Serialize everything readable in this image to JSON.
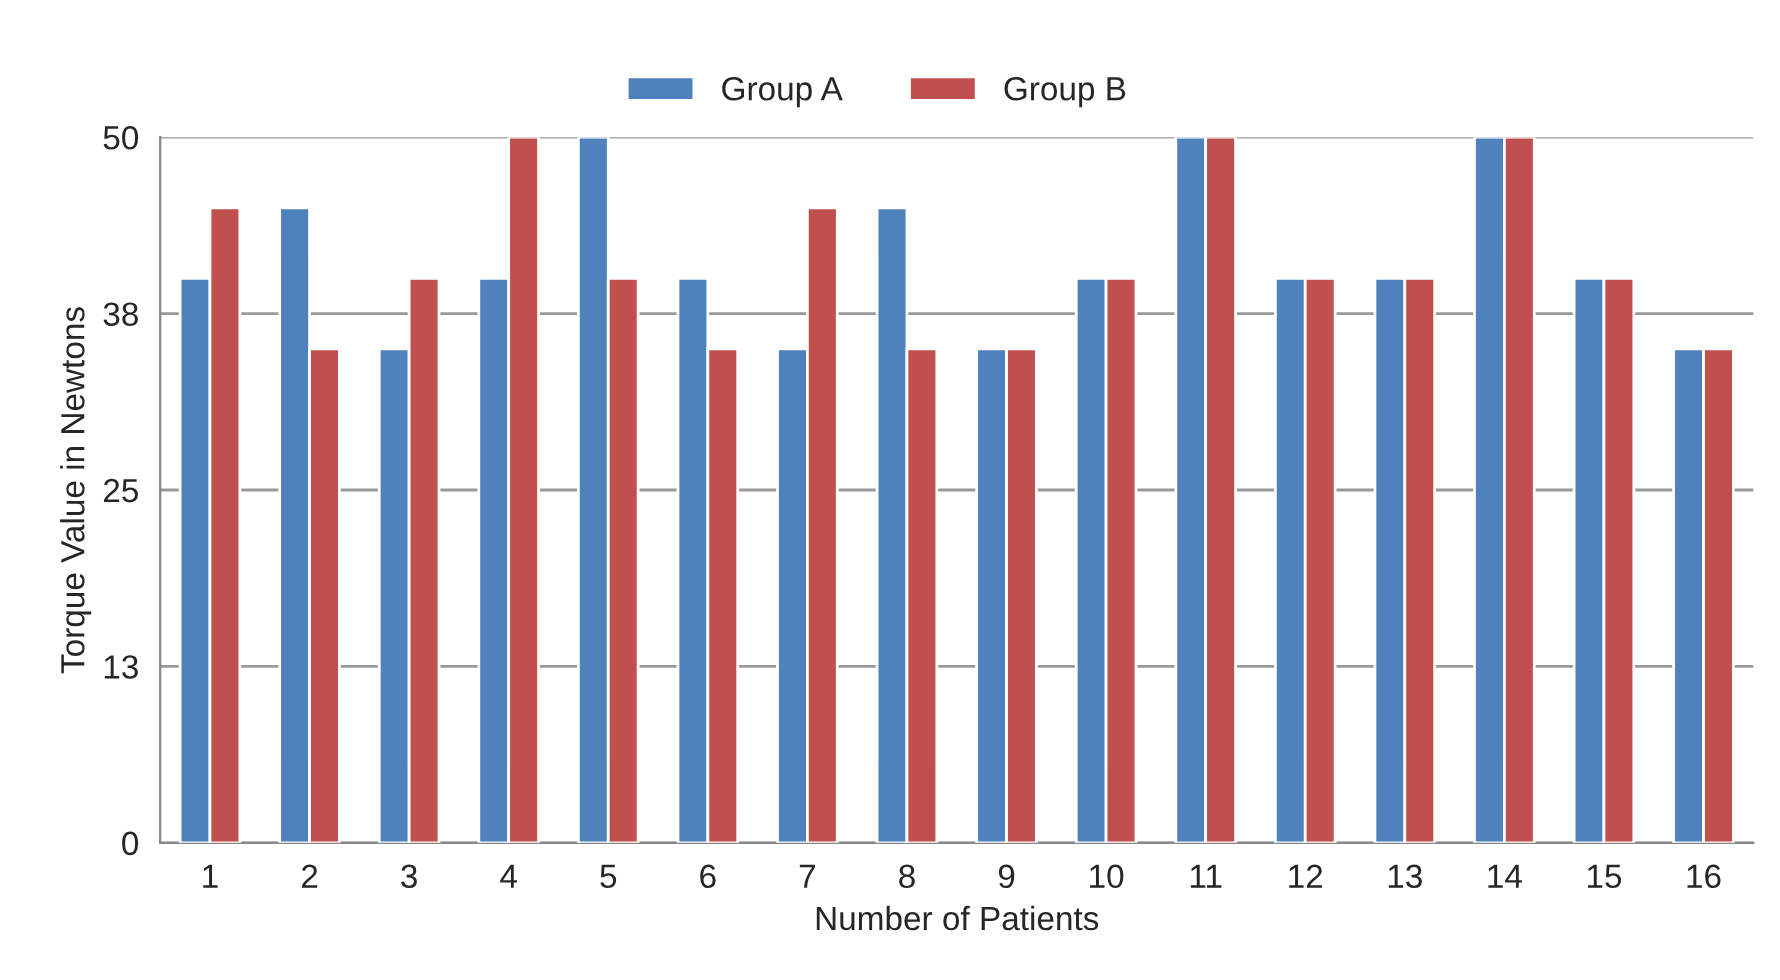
{
  "chart_data": {
    "type": "bar",
    "categories": [
      "1",
      "2",
      "3",
      "4",
      "5",
      "6",
      "7",
      "8",
      "9",
      "10",
      "11",
      "12",
      "13",
      "14",
      "15",
      "16"
    ],
    "series": [
      {
        "name": "Group A",
        "color": "#4f81bd",
        "values": [
          40,
          45,
          35,
          40,
          50,
          40,
          35,
          45,
          35,
          40,
          50,
          40,
          40,
          50,
          40,
          35
        ]
      },
      {
        "name": "Group B",
        "color": "#c0504d",
        "values": [
          45,
          35,
          40,
          50,
          40,
          35,
          45,
          35,
          35,
          40,
          50,
          40,
          40,
          50,
          40,
          35
        ]
      }
    ],
    "xlabel": "Number of Patients",
    "ylabel": "Torque Value in Newtons",
    "ylim": [
      0,
      50
    ],
    "yticks": [
      0,
      {
        "value": 12.5,
        "label": "13"
      },
      25,
      {
        "value": 37.5,
        "label": "38"
      },
      50
    ],
    "grid": "y",
    "legend": "top"
  }
}
